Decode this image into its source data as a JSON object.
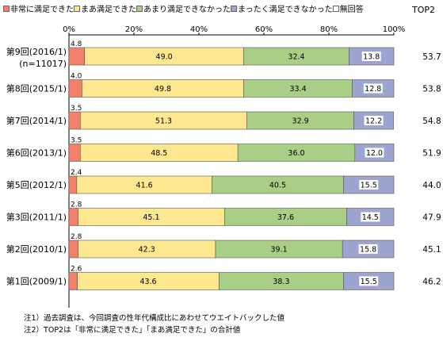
{
  "chart_data": {
    "type": "bar",
    "orientation": "horizontal",
    "stacked": true,
    "xlim": [
      0,
      100
    ],
    "x_tick_labels": [
      "0%",
      "20%",
      "40%",
      "60%",
      "80%",
      "100%"
    ],
    "legend_position": "top",
    "grid": false,
    "categories": [
      [
        "第9回(2016/1)",
        "(n=11017)"
      ],
      [
        "第8回(2015/1)"
      ],
      [
        "第7回(2014/1)"
      ],
      [
        "第6回(2013/1)"
      ],
      [
        "第5回(2012/1)"
      ],
      [
        "第3回(2011/1)"
      ],
      [
        "第2回(2010/1)"
      ],
      [
        "第1回(2009/1)"
      ]
    ],
    "series": [
      {
        "name": "非常に満足できた",
        "color": "#f2806a",
        "values": [
          4.8,
          4.0,
          3.5,
          3.5,
          2.4,
          2.8,
          2.8,
          2.6
        ]
      },
      {
        "name": "まあ満足できた",
        "color": "#fde78f",
        "values": [
          49.0,
          49.8,
          51.3,
          48.5,
          41.6,
          45.1,
          42.3,
          43.6
        ]
      },
      {
        "name": "あまり満足できなかった",
        "color": "#a9cf86",
        "values": [
          32.4,
          33.4,
          32.9,
          36.0,
          40.5,
          37.6,
          39.1,
          38.3
        ]
      },
      {
        "name": "まったく満足できなかった",
        "color": "#9ca4cf",
        "values": [
          13.8,
          12.8,
          12.2,
          12.0,
          15.5,
          14.5,
          15.8,
          15.5
        ]
      },
      {
        "name": "無回答",
        "color": "#ffffff",
        "values": [
          0.0,
          0.0,
          0.0,
          0.0,
          0.0,
          0.0,
          0.0,
          0.0
        ]
      }
    ],
    "value_labels": [
      [
        "4.8",
        "49.0",
        "32.4",
        "13.8"
      ],
      [
        "4.0",
        "49.8",
        "33.4",
        "12.8"
      ],
      [
        "3.5",
        "51.3",
        "32.9",
        "12.2"
      ],
      [
        "3.5",
        "48.5",
        "36.0",
        "12.0"
      ],
      [
        "2.4",
        "41.6",
        "40.5",
        "15.5"
      ],
      [
        "2.8",
        "45.1",
        "37.6",
        "14.5"
      ],
      [
        "2.8",
        "42.3",
        "39.1",
        "15.8"
      ],
      [
        "2.6",
        "43.6",
        "38.3",
        "15.5"
      ]
    ],
    "top2_header": "TOP2",
    "top2": [
      "53.7",
      "53.8",
      "54.8",
      "51.9",
      "44.0",
      "47.9",
      "45.1",
      "46.2"
    ]
  },
  "notes": [
    "注1）過去調査は、今回調査の性年代構成比にあわせてウエイトバックした値",
    "注2）TOP2は「非常に満足できた」「まあ満足できた」の合計値"
  ]
}
